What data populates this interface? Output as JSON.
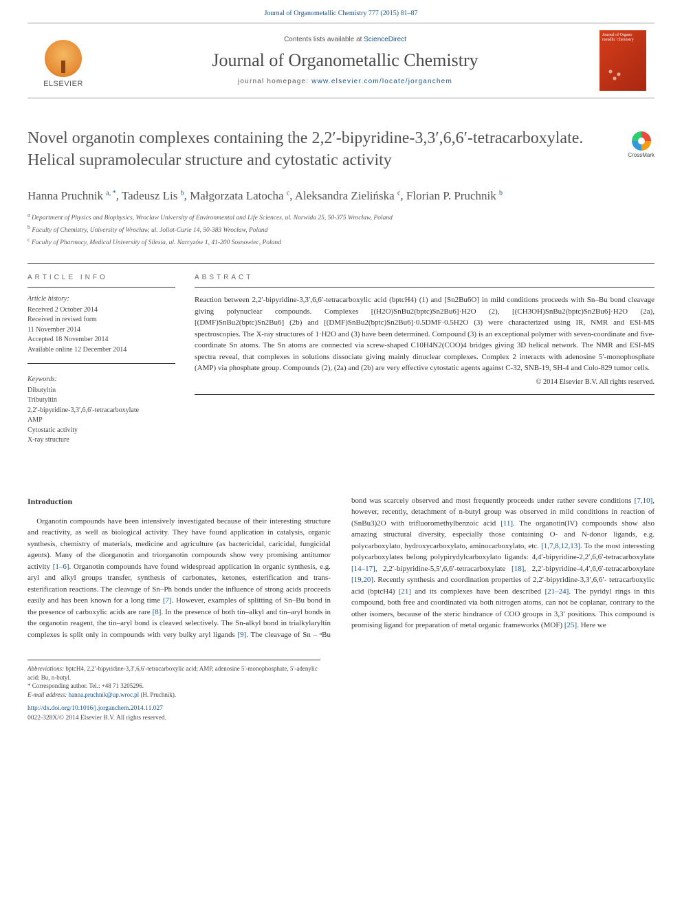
{
  "citation": "Journal of Organometallic Chemistry 777 (2015) 81–87",
  "masthead": {
    "contents_prefix": "Contents lists available at ",
    "contents_link": "ScienceDirect",
    "journal_name": "Journal of Organometallic Chemistry",
    "homepage_prefix": "journal homepage: ",
    "homepage_link": "www.elsevier.com/locate/jorganchem",
    "elsevier_label": "ELSEVIER",
    "cover_title": "Journal of Organo metallic Chemistry"
  },
  "crossmark_label": "CrossMark",
  "title": "Novel organotin complexes containing the 2,2′-bipyridine-3,3′,6,6′-tetracarboxylate. Helical supramolecular structure and cytostatic activity",
  "authors_html": "Hanna Pruchnik <sup>a, *</sup>, Tadeusz Lis <sup>b</sup>, Małgorzata Latocha <sup>c</sup>, Aleksandra Zielińska <sup>c</sup>, Florian P. Pruchnik <sup>b</sup>",
  "affiliations": [
    {
      "sup": "a",
      "text": "Department of Physics and Biophysics, Wroclaw University of Environmental and Life Sciences, ul. Norwida 25, 50-375 Wrocław, Poland"
    },
    {
      "sup": "b",
      "text": "Faculty of Chemistry, University of Wrocław, ul. Joliot-Curie 14, 50-383 Wrocław, Poland"
    },
    {
      "sup": "c",
      "text": "Faculty of Pharmacy, Medical University of Silesia, ul. Narcyzów 1, 41-200 Sosnowiec, Poland"
    }
  ],
  "labels": {
    "article_info": "ARTICLE INFO",
    "abstract": "ABSTRACT"
  },
  "history": {
    "heading": "Article history:",
    "lines": [
      "Received 2 October 2014",
      "Received in revised form",
      "11 November 2014",
      "Accepted 18 November 2014",
      "Available online 12 December 2014"
    ]
  },
  "keywords": {
    "heading": "Keywords:",
    "items": [
      "Dibutyltin",
      "Tributyltin",
      "2,2′-bipyridine-3,3′,6,6′-tetracarboxylate",
      "AMP",
      "Cytostatic activity",
      "X-ray structure"
    ]
  },
  "abstract_text": "Reaction between 2,2′-bipyridine-3,3′,6,6′-tetracarboxylic acid (bptcH4) (1) and [Sn2Bu6O] in mild conditions proceeds with Sn–Bu bond cleavage giving polynuclear compounds. Complexes [(H2O)SnBu2(bptc)Sn2Bu6]·H2O (2), [(CH3OH)SnBu2(bptc)Sn2Bu6]·H2O (2a), [(DMF)SnBu2(bptc)Sn2Bu6] (2b) and [(DMF)SnBu2(bptc)Sn2Bu6]·0.5DMF·0.5H2O (3) were characterized using IR, NMR and ESI-MS spectroscopies. The X-ray structures of 1·H2O and (3) have been determined. Compound (3) is an exceptional polymer with seven-coordinate and five-coordinate Sn atoms. The Sn atoms are connected via screw-shaped C10H4N2(COO)4 bridges giving 3D helical network. The NMR and ESI-MS spectra reveal, that complexes in solutions dissociate giving mainly dinuclear complexes. Complex 2 interacts with adenosine 5′-monophosphate (AMP) via phosphate group. Compounds (2), (2a) and (2b) are very effective cytostatic agents against C-32, SNB-19, SH-4 and Colo-829 tumor cells.",
  "copyright": "© 2014 Elsevier B.V. All rights reserved.",
  "intro_heading": "Introduction",
  "intro_para1": "Organotin compounds have been intensively investigated because of their interesting structure and reactivity, as well as biological activity. They have found application in catalysis, organic synthesis, chemistry of materials, medicine and agriculture (as bactericidal, caricidal, fungicidal agents). Many of the diorganotin and triorganotin compounds show very promising antitumor activity ",
  "intro_ref1": "[1–6]",
  "intro_para2": ". Organotin compounds have found widespread application in organic synthesis, e.g. aryl and alkyl groups transfer, synthesis of carbonates, ketones, esterification and trans-esterification reactions. The cleavage of Sn–Ph bonds under the influence of strong acids proceeds easily and has been known for a long time ",
  "intro_ref2": "[7]",
  "intro_para3": ". However, examples of splitting of Sn–Bu bond in the presence of carboxylic acids are rare ",
  "intro_ref3": "[8]",
  "intro_para4": ". In the presence of both",
  "col2_para1a": "tin–alkyl and tin–aryl bonds in the organotin reagent, the tin–aryl bond is cleaved selectively. The Sn-alkyl bond in trialkylaryltin complexes is split only in compounds with very bulky aryl ligands ",
  "col2_ref1": "[9]",
  "col2_para1b": ". The cleavage of Sn – ⁿBu bond was scarcely observed and most frequently proceeds under rather severe conditions ",
  "col2_ref2": "[7,10]",
  "col2_para1c": ", however, recently, detachment of n-butyl group was observed in mild conditions in reaction of (SnBu3)2O with trifluoromethylbenzoic acid ",
  "col2_ref3": "[11]",
  "col2_para1d": ". The organotin(IV) compounds show also amazing structural diversity, especially those containing O- and N-donor ligands, e.g. polycarboxylato, hydroxycarboxylato, aminocarboxylato, etc. ",
  "col2_ref4": "[1,7,8,12,13]",
  "col2_para1e": ". To the most interesting polycarboxylates belong polypirydylcarboxylato ligands: 4,4′-bipyridine-2,2′,6,6′-tetracarboxylate ",
  "col2_ref5": "[14–17]",
  "col2_para1f": ", 2,2′-bipyridine-5,5′,6,6′-tetracarboxylate ",
  "col2_ref6": "[18]",
  "col2_para1g": ", 2,2′-bipyridine-4,4′,6,6′-tetracarboxylate ",
  "col2_ref7": "[19,20]",
  "col2_para1h": ". Recently synthesis and coordination properties of 2,2′-bipyridine-3,3′,6,6′- tetracarboxylic acid (bptcH4) ",
  "col2_ref8": "[21]",
  "col2_para1i": " and its complexes have been described ",
  "col2_ref9": "[21–24]",
  "col2_para1j": ". The pyridyl rings in this compound, both free and coordinated via both nitrogen atoms, can not be coplanar, contrary to the other isomers, because of the steric hindrance of COO groups in 3,3′ positions. This compound is promising ligand for preparation of metal organic frameworks (MOF) ",
  "col2_ref10": "[25]",
  "col2_para1k": ". Here we",
  "footer": {
    "abbr_label": "Abbreviations:",
    "abbr_text": " bptcH4, 2,2′-bipyridine-3,3′,6,6′-tetracarboxylic acid; AMP, adenosine 5′-monophosphate, 5′-adenylic acid; Bu, n-butyl.",
    "corr_label": "* Corresponding author.",
    "corr_tel": " Tel.: +48 71 3205296.",
    "email_label": "E-mail address:",
    "email_value": " hanna.pruchnik@up.wroc.pl",
    "email_person": " (H. Pruchnik).",
    "doi": "http://dx.doi.org/10.1016/j.jorganchem.2014.11.027",
    "issn": "0022-328X/© 2014 Elsevier B.V. All rights reserved."
  }
}
